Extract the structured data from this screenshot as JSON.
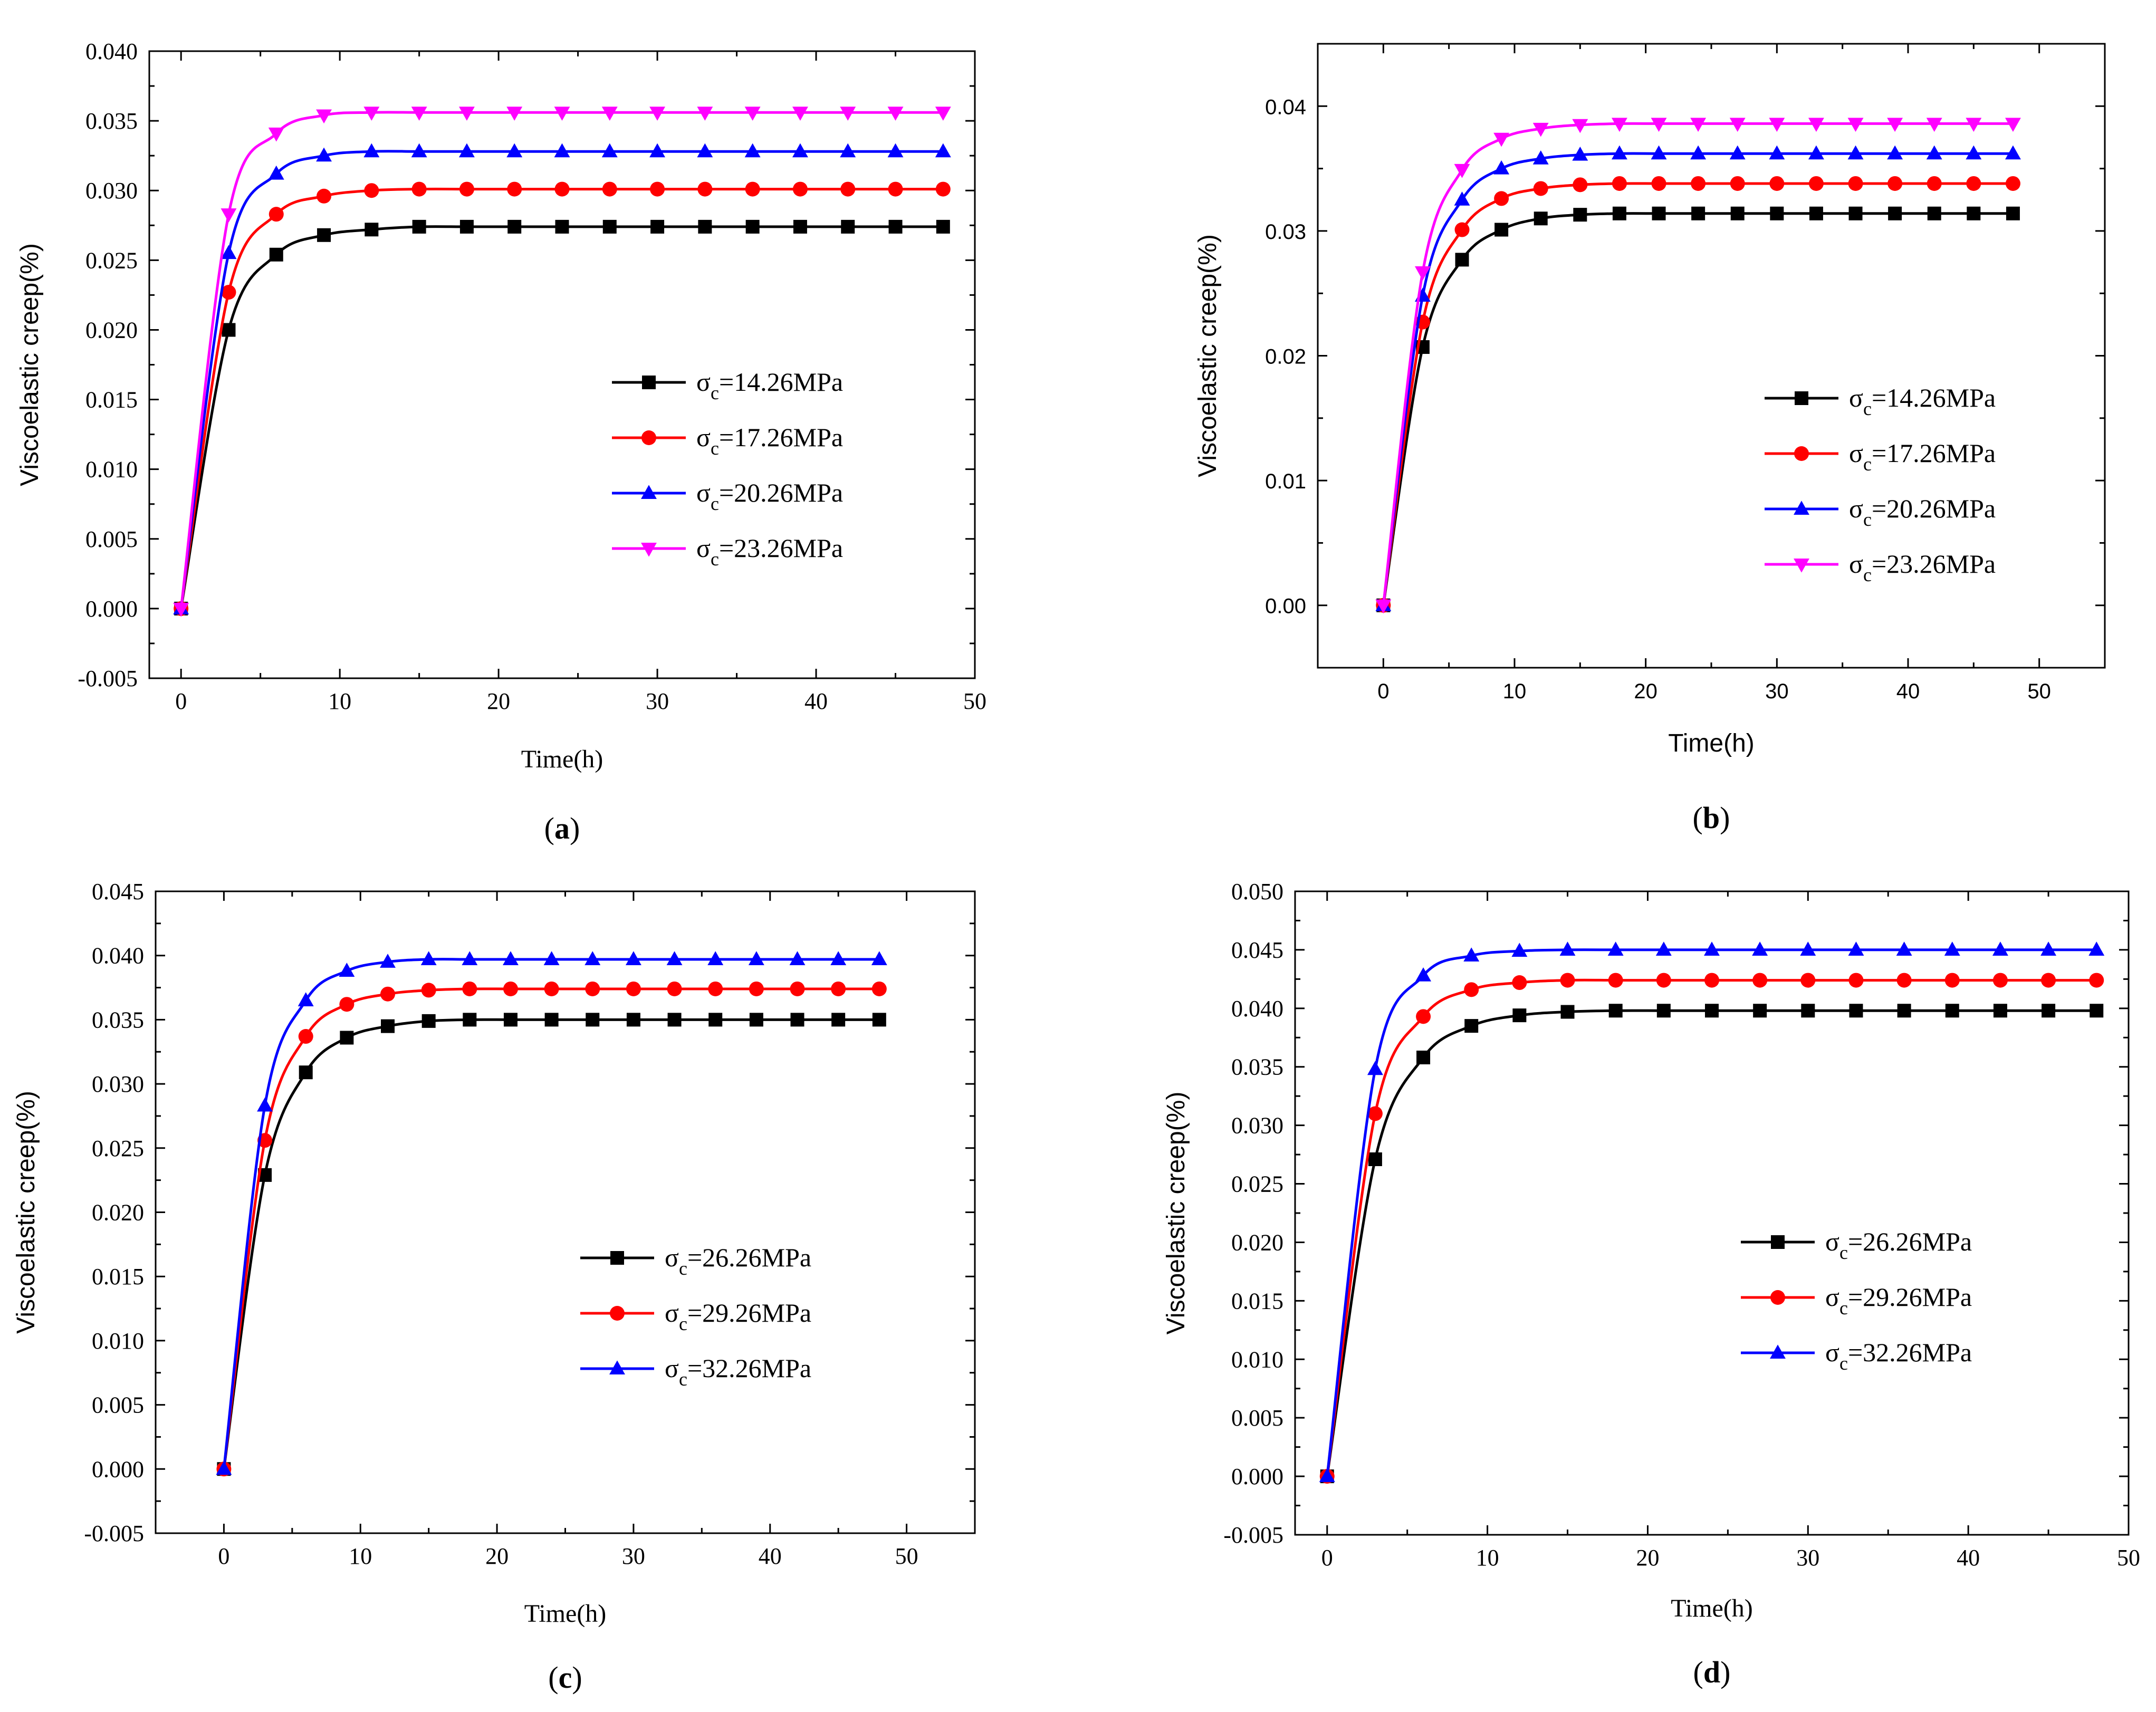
{
  "figure": {
    "panels": [
      "a",
      "b",
      "c",
      "d"
    ]
  },
  "chart_data": [
    {
      "type": "line",
      "panel_label": "a",
      "xlabel": "Time(h)",
      "ylabel": "Viscoelastic creep(%)",
      "xlim": [
        -2,
        50
      ],
      "ylim": [
        -0.005,
        0.04
      ],
      "xticks": [
        0,
        10,
        20,
        30,
        40,
        50
      ],
      "yticks": [
        -0.005,
        0.0,
        0.005,
        0.01,
        0.015,
        0.02,
        0.025,
        0.03,
        0.035,
        0.04
      ],
      "ytick_labels": [
        "-0.005",
        "0.000",
        "0.005",
        "0.010",
        "0.015",
        "0.020",
        "0.025",
        "0.030",
        "0.035",
        "0.040"
      ],
      "x": [
        0,
        3,
        6,
        9,
        12,
        15,
        18,
        21,
        24,
        27,
        30,
        33,
        36,
        39,
        42,
        45,
        48
      ],
      "legend_location": "center-right",
      "series": [
        {
          "name": "σc=14.26MPa",
          "legend_main": "σ",
          "legend_sub": "c",
          "legend_rest": "=14.26MPa",
          "color": "#000000",
          "marker": "square",
          "values": [
            0,
            0.02,
            0.0254,
            0.0268,
            0.0272,
            0.0274,
            0.0274,
            0.0274,
            0.0274,
            0.0274,
            0.0274,
            0.0274,
            0.0274,
            0.0274,
            0.0274,
            0.0274,
            0.0274
          ]
        },
        {
          "name": "σc=17.26MPa",
          "legend_main": "σ",
          "legend_sub": "c",
          "legend_rest": "=17.26MPa",
          "color": "#ff0000",
          "marker": "circle",
          "values": [
            0,
            0.0227,
            0.0283,
            0.0296,
            0.03,
            0.0301,
            0.0301,
            0.0301,
            0.0301,
            0.0301,
            0.0301,
            0.0301,
            0.0301,
            0.0301,
            0.0301,
            0.0301,
            0.0301
          ]
        },
        {
          "name": "σc=20.26MPa",
          "legend_main": "σ",
          "legend_sub": "c",
          "legend_rest": "=20.26MPa",
          "color": "#0000ff",
          "marker": "triangle-up",
          "values": [
            0,
            0.0255,
            0.0312,
            0.0325,
            0.0328,
            0.0328,
            0.0328,
            0.0328,
            0.0328,
            0.0328,
            0.0328,
            0.0328,
            0.0328,
            0.0328,
            0.0328,
            0.0328,
            0.0328
          ]
        },
        {
          "name": "σc=23.26MPa",
          "legend_main": "σ",
          "legend_sub": "c",
          "legend_rest": "=23.26MPa",
          "color": "#ff00ff",
          "marker": "triangle-down",
          "values": [
            0,
            0.0283,
            0.0341,
            0.0354,
            0.0356,
            0.0356,
            0.0356,
            0.0356,
            0.0356,
            0.0356,
            0.0356,
            0.0356,
            0.0356,
            0.0356,
            0.0356,
            0.0356,
            0.0356
          ]
        }
      ]
    },
    {
      "type": "line",
      "panel_label": "b",
      "xlabel": "Time(h)",
      "ylabel": "Viscoelastic creep(%)",
      "xlim": [
        -5,
        55
      ],
      "ylim": [
        -0.005,
        0.045
      ],
      "xticks": [
        0,
        10,
        20,
        30,
        40,
        50
      ],
      "yticks": [
        0.0,
        0.01,
        0.02,
        0.03,
        0.04
      ],
      "ytick_labels": [
        "0.00",
        "0.01",
        "0.02",
        "0.03",
        "0.04"
      ],
      "x": [
        0,
        3,
        6,
        9,
        12,
        15,
        18,
        21,
        24,
        27,
        30,
        33,
        36,
        39,
        42,
        45,
        48
      ],
      "legend_location": "center-right",
      "series": [
        {
          "name": "σc=14.26MPa",
          "legend_main": "σ",
          "legend_sub": "c",
          "legend_rest": "=14.26MPa",
          "color": "#000000",
          "marker": "square",
          "values": [
            0,
            0.0207,
            0.0277,
            0.0301,
            0.031,
            0.0313,
            0.0314,
            0.0314,
            0.0314,
            0.0314,
            0.0314,
            0.0314,
            0.0314,
            0.0314,
            0.0314,
            0.0314,
            0.0314
          ]
        },
        {
          "name": "σc=17.26MPa",
          "legend_main": "σ",
          "legend_sub": "c",
          "legend_rest": "=17.26MPa",
          "color": "#ff0000",
          "marker": "circle",
          "values": [
            0,
            0.0227,
            0.0301,
            0.0326,
            0.0334,
            0.0337,
            0.0338,
            0.0338,
            0.0338,
            0.0338,
            0.0338,
            0.0338,
            0.0338,
            0.0338,
            0.0338,
            0.0338,
            0.0338
          ]
        },
        {
          "name": "σc=20.26MPa",
          "legend_main": "σ",
          "legend_sub": "c",
          "legend_rest": "=20.26MPa",
          "color": "#0000ff",
          "marker": "triangle-up",
          "values": [
            0,
            0.0248,
            0.0325,
            0.035,
            0.0358,
            0.0361,
            0.0362,
            0.0362,
            0.0362,
            0.0362,
            0.0362,
            0.0362,
            0.0362,
            0.0362,
            0.0362,
            0.0362,
            0.0362
          ]
        },
        {
          "name": "σc=23.26MPa",
          "legend_main": "σ",
          "legend_sub": "c",
          "legend_rest": "=23.26MPa",
          "color": "#ff00ff",
          "marker": "triangle-down",
          "values": [
            0,
            0.0267,
            0.0349,
            0.0374,
            0.0382,
            0.0385,
            0.0386,
            0.0386,
            0.0386,
            0.0386,
            0.0386,
            0.0386,
            0.0386,
            0.0386,
            0.0386,
            0.0386,
            0.0386
          ]
        }
      ]
    },
    {
      "type": "line",
      "panel_label": "c",
      "xlabel": "Time(h)",
      "ylabel": "Viscoelastic creep(%)",
      "xlim": [
        -5,
        55
      ],
      "ylim": [
        -0.005,
        0.045
      ],
      "xticks": [
        0,
        10,
        20,
        30,
        40,
        50
      ],
      "yticks": [
        -0.005,
        0.0,
        0.005,
        0.01,
        0.015,
        0.02,
        0.025,
        0.03,
        0.035,
        0.04,
        0.045
      ],
      "ytick_labels": [
        "-0.005",
        "0.000",
        "0.005",
        "0.010",
        "0.015",
        "0.020",
        "0.025",
        "0.030",
        "0.035",
        "0.040",
        "0.045"
      ],
      "x": [
        0,
        3,
        6,
        9,
        12,
        15,
        18,
        21,
        24,
        27,
        30,
        33,
        36,
        39,
        42,
        45,
        48
      ],
      "legend_location": "center-right",
      "series": [
        {
          "name": "σc=26.26MPa",
          "legend_main": "σ",
          "legend_sub": "c",
          "legend_rest": "=26.26MPa",
          "color": "#000000",
          "marker": "square",
          "values": [
            0,
            0.0229,
            0.0309,
            0.0336,
            0.0345,
            0.0349,
            0.035,
            0.035,
            0.035,
            0.035,
            0.035,
            0.035,
            0.035,
            0.035,
            0.035,
            0.035,
            0.035
          ]
        },
        {
          "name": "σc=29.26MPa",
          "legend_main": "σ",
          "legend_sub": "c",
          "legend_rest": "=29.26MPa",
          "color": "#ff0000",
          "marker": "circle",
          "values": [
            0,
            0.0256,
            0.0337,
            0.0362,
            0.037,
            0.0373,
            0.0374,
            0.0374,
            0.0374,
            0.0374,
            0.0374,
            0.0374,
            0.0374,
            0.0374,
            0.0374,
            0.0374,
            0.0374
          ]
        },
        {
          "name": "σc=32.26MPa",
          "legend_main": "σ",
          "legend_sub": "c",
          "legend_rest": "=32.26MPa",
          "color": "#0000ff",
          "marker": "triangle-up",
          "values": [
            0,
            0.0283,
            0.0365,
            0.0388,
            0.0395,
            0.0397,
            0.0397,
            0.0397,
            0.0397,
            0.0397,
            0.0397,
            0.0397,
            0.0397,
            0.0397,
            0.0397,
            0.0397,
            0.0397
          ]
        }
      ]
    },
    {
      "type": "line",
      "panel_label": "d",
      "xlabel": "Time(h)",
      "ylabel": "Viscoelastic creep(%)",
      "xlim": [
        -2,
        50
      ],
      "ylim": [
        -0.005,
        0.05
      ],
      "xticks": [
        0,
        10,
        20,
        30,
        40,
        50
      ],
      "yticks": [
        -0.005,
        0.0,
        0.005,
        0.01,
        0.015,
        0.02,
        0.025,
        0.03,
        0.035,
        0.04,
        0.045,
        0.05
      ],
      "ytick_labels": [
        "-0.005",
        "0.000",
        "0.005",
        "0.010",
        "0.015",
        "0.020",
        "0.025",
        "0.030",
        "0.035",
        "0.040",
        "0.045",
        "0.050"
      ],
      "x": [
        0,
        3,
        6,
        9,
        12,
        15,
        18,
        21,
        24,
        27,
        30,
        33,
        36,
        39,
        42,
        45,
        48
      ],
      "legend_location": "center-right",
      "series": [
        {
          "name": "σc=26.26MPa",
          "legend_main": "σ",
          "legend_sub": "c",
          "legend_rest": "=26.26MPa",
          "color": "#000000",
          "marker": "square",
          "values": [
            0,
            0.0271,
            0.0358,
            0.0385,
            0.0394,
            0.0397,
            0.0398,
            0.0398,
            0.0398,
            0.0398,
            0.0398,
            0.0398,
            0.0398,
            0.0398,
            0.0398,
            0.0398,
            0.0398
          ]
        },
        {
          "name": "σc=29.26MPa",
          "legend_main": "σ",
          "legend_sub": "c",
          "legend_rest": "=29.26MPa",
          "color": "#ff0000",
          "marker": "circle",
          "values": [
            0,
            0.031,
            0.0393,
            0.0416,
            0.0422,
            0.0424,
            0.0424,
            0.0424,
            0.0424,
            0.0424,
            0.0424,
            0.0424,
            0.0424,
            0.0424,
            0.0424,
            0.0424,
            0.0424
          ]
        },
        {
          "name": "σc=32.26MPa",
          "legend_main": "σ",
          "legend_sub": "c",
          "legend_rest": "=32.26MPa",
          "color": "#0000ff",
          "marker": "triangle-up",
          "values": [
            0,
            0.0348,
            0.0428,
            0.0445,
            0.0449,
            0.045,
            0.045,
            0.045,
            0.045,
            0.045,
            0.045,
            0.045,
            0.045,
            0.045,
            0.045,
            0.045,
            0.045
          ]
        }
      ]
    }
  ]
}
